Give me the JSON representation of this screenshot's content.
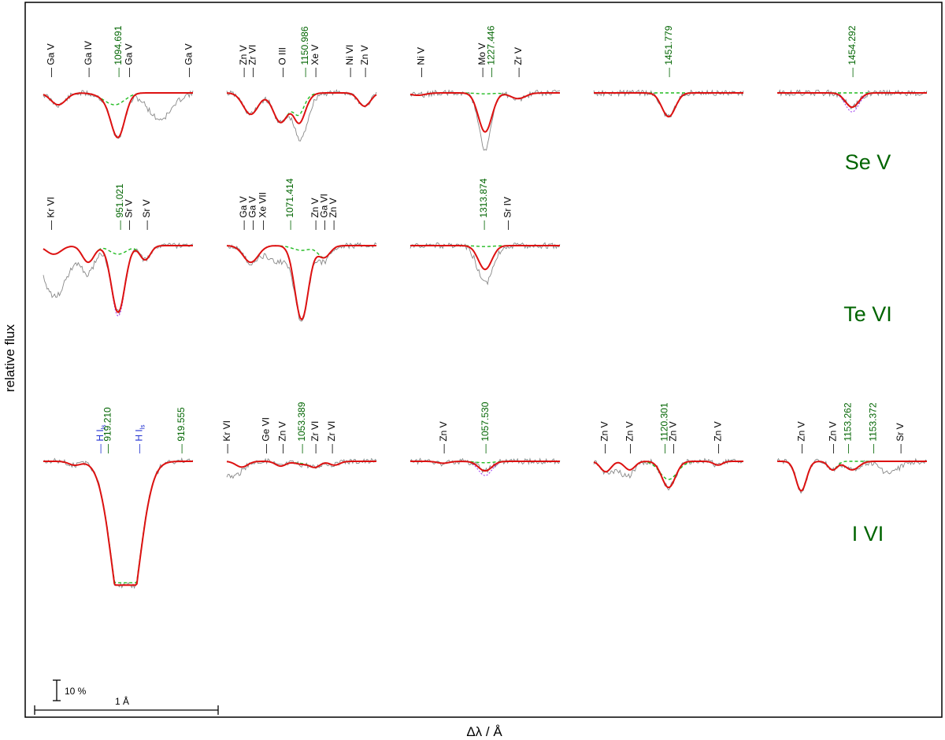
{
  "chart_data": {
    "type": "line",
    "ylabel": "relative flux",
    "xlabel": "Δλ / Å",
    "scale_bar": {
      "flux": "10 %",
      "wavelength": "1 Å"
    },
    "colors": {
      "observation": "#888888",
      "model_with_element": "#dd1111",
      "model_without_element": "#22bb22",
      "model_alt": "#9933ee",
      "target_line_label": "#006400",
      "other_line_label": "#000000",
      "hydrogen_label": "#1f2fd0"
    },
    "series": [
      {
        "name": "observation",
        "style": "thin grey"
      },
      {
        "name": "model",
        "style": "thick red"
      },
      {
        "name": "model without element",
        "style": "dashed green"
      },
      {
        "name": "model variant",
        "style": "dotted violet"
      }
    ],
    "ion_labels": [
      {
        "text": "Se V",
        "row": 0
      },
      {
        "text": "Te VI",
        "row": 1
      },
      {
        "text": "I VI",
        "row": 2
      }
    ],
    "panels": [
      {
        "id": "se-1094",
        "row": 0,
        "col": 0,
        "center": "1094.691",
        "depth": 0.82,
        "alt_depth": 0.82,
        "green_depth": 0.12,
        "blends": [
          {
            "pos": 0.45,
            "depth": 0.15,
            "width": 0.07
          },
          {
            "pos": 0.1,
            "depth": 0.25,
            "width": 0.05
          }
        ],
        "obs_extra": [
          {
            "pos": 0.78,
            "depth": 0.55,
            "width": 0.08
          }
        ],
        "labels": [
          {
            "text": "Ga V",
            "pos": 0.05,
            "type": "other"
          },
          {
            "text": "Ga IV",
            "pos": 0.3,
            "type": "other"
          },
          {
            "text": "1094.691",
            "pos": 0.5,
            "type": "target"
          },
          {
            "text": "Ga V",
            "pos": 0.57,
            "type": "other"
          },
          {
            "text": "Ga V",
            "pos": 0.97,
            "type": "other"
          }
        ]
      },
      {
        "id": "se-1150",
        "row": 0,
        "col": 1,
        "center": "1150.986",
        "depth": 0.25,
        "alt_depth": 0.25,
        "green_depth": 0.06,
        "blends": [
          {
            "pos": 0.16,
            "depth": 0.45,
            "width": 0.05
          },
          {
            "pos": 0.36,
            "depth": 0.62,
            "width": 0.05
          },
          {
            "pos": 0.48,
            "depth": 0.38,
            "width": 0.035
          },
          {
            "pos": 0.92,
            "depth": 0.28,
            "width": 0.04
          }
        ],
        "obs_extra": [
          {
            "pos": 0.51,
            "depth": 0.4,
            "width": 0.05
          }
        ],
        "labels": [
          {
            "text": "Zn V",
            "pos": 0.11,
            "type": "other"
          },
          {
            "text": "Zr VI",
            "pos": 0.17,
            "type": "other"
          },
          {
            "text": "O III",
            "pos": 0.37,
            "type": "other"
          },
          {
            "text": "1150.986",
            "pos": 0.52,
            "type": "target"
          },
          {
            "text": "Xe V",
            "pos": 0.59,
            "type": "other"
          },
          {
            "text": "Ni VI",
            "pos": 0.82,
            "type": "other"
          },
          {
            "text": "Zn V",
            "pos": 0.92,
            "type": "other"
          }
        ]
      },
      {
        "id": "se-1227",
        "row": 0,
        "col": 2,
        "center": "1227.446",
        "depth": 0.82,
        "alt_depth": 0.82,
        "green_depth": 0.02,
        "blends": [
          {
            "pos": 0.72,
            "depth": 0.12,
            "width": 0.05
          },
          {
            "pos": 0.05,
            "depth": 0.05,
            "width": 0.05
          }
        ],
        "obs_extra": [
          {
            "pos": 0.5,
            "depth": 0.35,
            "width": 0.03
          }
        ],
        "labels": [
          {
            "text": "Ni V",
            "pos": 0.07,
            "type": "other"
          },
          {
            "text": "Mo V",
            "pos": 0.48,
            "type": "other"
          },
          {
            "text": "1227.446",
            "pos": 0.54,
            "type": "target"
          },
          {
            "text": "Zr V",
            "pos": 0.72,
            "type": "other"
          }
        ]
      },
      {
        "id": "se-1451",
        "row": 0,
        "col": 3,
        "center": "1451.779",
        "depth": 0.5,
        "alt_depth": 0.5,
        "green_depth": 0.0,
        "blends": [],
        "obs_extra": [],
        "labels": [
          {
            "text": "1451.779",
            "pos": 0.5,
            "type": "target"
          }
        ]
      },
      {
        "id": "se-1454",
        "row": 0,
        "col": 4,
        "center": "1454.292",
        "depth": 0.3,
        "alt_depth": 0.4,
        "green_depth": 0.0,
        "blends": [],
        "obs_extra": [],
        "labels": [
          {
            "text": "1454.292",
            "pos": 0.5,
            "type": "target"
          }
        ]
      },
      {
        "id": "te-951",
        "row": 1,
        "col": 0,
        "center": "951.021",
        "depth": 1.4,
        "alt_depth": 1.48,
        "green_depth": 0.18,
        "blends": [
          {
            "pos": 0.07,
            "depth": 0.18,
            "width": 0.05
          },
          {
            "pos": 0.3,
            "depth": 0.35,
            "width": 0.04
          },
          {
            "pos": 0.68,
            "depth": 0.3,
            "width": 0.035
          }
        ],
        "obs_extra": [
          {
            "pos": 0.08,
            "depth": 0.9,
            "width": 0.09
          },
          {
            "pos": 0.3,
            "depth": 0.2,
            "width": 0.06
          }
        ],
        "labels": [
          {
            "text": "Kr VI",
            "pos": 0.05,
            "type": "other"
          },
          {
            "text": "951.021",
            "pos": 0.51,
            "type": "target"
          },
          {
            "text": "Sr V",
            "pos": 0.57,
            "type": "other"
          },
          {
            "text": "Sr V",
            "pos": 0.69,
            "type": "other"
          }
        ]
      },
      {
        "id": "te-1071",
        "row": 1,
        "col": 1,
        "center": "1071.414",
        "depth": 1.55,
        "alt_depth": 1.55,
        "green_depth": 0.1,
        "blends": [
          {
            "pos": 0.16,
            "depth": 0.35,
            "width": 0.05
          },
          {
            "pos": 0.65,
            "depth": 0.25,
            "width": 0.04
          }
        ],
        "obs_extra": [
          {
            "pos": 0.34,
            "depth": 0.35,
            "width": 0.07
          },
          {
            "pos": 0.62,
            "depth": 0.1,
            "width": 0.05
          }
        ],
        "labels": [
          {
            "text": "Ga V",
            "pos": 0.11,
            "type": "other"
          },
          {
            "text": "Ga V",
            "pos": 0.17,
            "type": "other"
          },
          {
            "text": "Xe VII",
            "pos": 0.24,
            "type": "other"
          },
          {
            "text": "1071.414",
            "pos": 0.42,
            "type": "target"
          },
          {
            "text": "Zn V",
            "pos": 0.59,
            "type": "other"
          },
          {
            "text": "Ga VI",
            "pos": 0.65,
            "type": "other"
          },
          {
            "text": "Zn V",
            "pos": 0.71,
            "type": "other"
          }
        ]
      },
      {
        "id": "te-1313",
        "row": 1,
        "col": 2,
        "center": "1313.874",
        "depth": 0.5,
        "alt_depth": 0.5,
        "green_depth": 0.02,
        "blends": [],
        "obs_extra": [
          {
            "pos": 0.5,
            "depth": 0.3,
            "width": 0.06
          }
        ],
        "labels": [
          {
            "text": "1313.874",
            "pos": 0.49,
            "type": "target"
          },
          {
            "text": "Sr IV",
            "pos": 0.65,
            "type": "other"
          }
        ]
      },
      {
        "id": "i-919",
        "row": 2,
        "col": 0,
        "center": "919.210",
        "depth": 2.6,
        "alt_depth": 2.6,
        "green_depth": 2.55,
        "wide": true,
        "blends": [
          {
            "pos": 0.21,
            "depth": 0.08,
            "width": 0.04
          }
        ],
        "obs_extra": [],
        "labels": [
          {
            "text": "H I",
            "sub": "ls",
            "pos": 0.38,
            "type": "hydrogen"
          },
          {
            "text": "919.210",
            "pos": 0.43,
            "type": "target"
          },
          {
            "text": "H I",
            "sub": "ls",
            "pos": 0.64,
            "type": "hydrogen"
          },
          {
            "text": "919.555",
            "pos": 0.92,
            "type": "target"
          }
        ]
      },
      {
        "id": "i-1053",
        "row": 2,
        "col": 1,
        "center": "1053.389",
        "depth": 0.06,
        "alt_depth": 0.06,
        "green_depth": 0.04,
        "blends": [
          {
            "pos": 0.1,
            "depth": 0.12,
            "width": 0.04
          },
          {
            "pos": 0.36,
            "depth": 0.1,
            "width": 0.035
          },
          {
            "pos": 0.59,
            "depth": 0.12,
            "width": 0.035
          },
          {
            "pos": 0.72,
            "depth": 0.08,
            "width": 0.035
          }
        ],
        "obs_extra": [
          {
            "pos": 0.02,
            "depth": 0.3,
            "width": 0.05
          }
        ],
        "labels": [
          {
            "text": "Kr VI",
            "pos": 0.0,
            "type": "other"
          },
          {
            "text": "Ge VI",
            "pos": 0.26,
            "type": "other"
          },
          {
            "text": "Zn V",
            "pos": 0.37,
            "type": "other"
          },
          {
            "text": "1053.389",
            "pos": 0.5,
            "type": "target"
          },
          {
            "text": "Zr VI",
            "pos": 0.59,
            "type": "other"
          },
          {
            "text": "Zr VI",
            "pos": 0.7,
            "type": "other"
          }
        ]
      },
      {
        "id": "i-1057",
        "row": 2,
        "col": 2,
        "center": "1057.530",
        "depth": 0.2,
        "alt_depth": 0.3,
        "green_depth": 0.03,
        "blends": [
          {
            "pos": 0.22,
            "depth": 0.04,
            "width": 0.04
          }
        ],
        "obs_extra": [],
        "labels": [
          {
            "text": "Zn V",
            "pos": 0.22,
            "type": "other"
          },
          {
            "text": "1057.530",
            "pos": 0.5,
            "type": "target"
          }
        ]
      },
      {
        "id": "i-1120",
        "row": 2,
        "col": 3,
        "center": "1120.301",
        "depth": 0.55,
        "alt_depth": 0.55,
        "green_depth": 0.38,
        "blends": [
          {
            "pos": 0.08,
            "depth": 0.22,
            "width": 0.035
          },
          {
            "pos": 0.24,
            "depth": 0.18,
            "width": 0.035
          },
          {
            "pos": 0.83,
            "depth": 0.08,
            "width": 0.03
          }
        ],
        "obs_extra": [
          {
            "pos": 0.18,
            "depth": 0.2,
            "width": 0.06
          }
        ],
        "labels": [
          {
            "text": "Zn V",
            "pos": 0.07,
            "type": "other"
          },
          {
            "text": "Zn V",
            "pos": 0.24,
            "type": "other"
          },
          {
            "text": "1120.301",
            "pos": 0.47,
            "type": "target"
          },
          {
            "text": "Zn V",
            "pos": 0.53,
            "type": "other"
          },
          {
            "text": "Zn V",
            "pos": 0.83,
            "type": "other"
          }
        ]
      },
      {
        "id": "i-1153",
        "row": 2,
        "col": 4,
        "center": "1153.262",
        "depth": 0.18,
        "alt_depth": 0.18,
        "green_depth": 0.0,
        "blends": [
          {
            "pos": 0.16,
            "depth": 0.62,
            "width": 0.035
          },
          {
            "pos": 0.37,
            "depth": 0.18,
            "width": 0.03
          }
        ],
        "obs_extra": [
          {
            "pos": 0.75,
            "depth": 0.25,
            "width": 0.06
          }
        ],
        "labels": [
          {
            "text": "Zn V",
            "pos": 0.16,
            "type": "other"
          },
          {
            "text": "Zn V",
            "pos": 0.37,
            "type": "other"
          },
          {
            "text": "1153.262",
            "pos": 0.47,
            "type": "target"
          },
          {
            "text": "1153.372",
            "pos": 0.64,
            "type": "target"
          },
          {
            "text": "Sr V",
            "pos": 0.82,
            "type": "other"
          }
        ]
      }
    ]
  }
}
